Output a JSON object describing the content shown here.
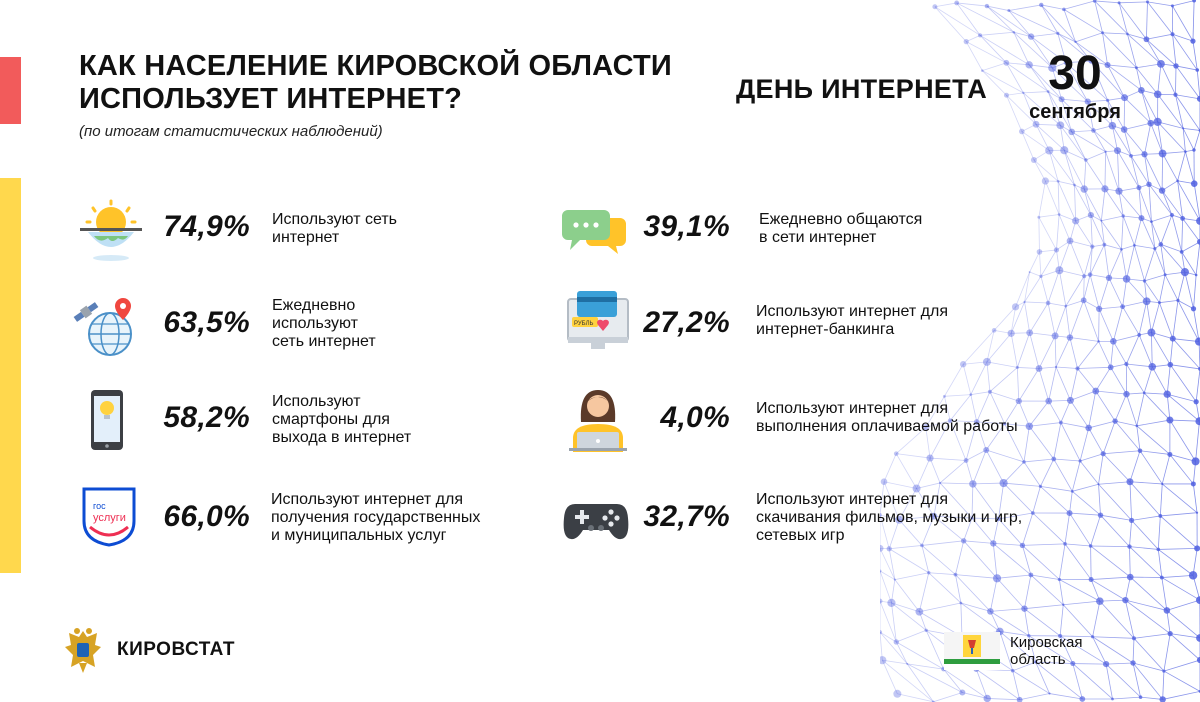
{
  "header": {
    "title_lines": [
      "КАК НАСЕЛЕНИЕ КИРОВСКОЙ ОБЛАСТИ",
      "ИСПОЛЬЗУЕТ ИНТЕРНЕТ?"
    ],
    "subtitle": "(по итогам статистических наблюдений)",
    "event": "ДЕНЬ ИНТЕРНЕТА",
    "date_number": "30",
    "date_month": "сентября"
  },
  "stats_left": [
    {
      "icon": "sun-globe-icon",
      "value": "74,9%",
      "lines": [
        "Используют сеть",
        "интернет"
      ]
    },
    {
      "icon": "globe-satellite-icon",
      "value": "63,5%",
      "lines": [
        "Ежедневно",
        "используют",
        "сеть интернет"
      ]
    },
    {
      "icon": "smartphone-icon",
      "value": "58,2%",
      "lines": [
        "Используют",
        "смартфоны для",
        "выхода в интернет"
      ]
    },
    {
      "icon": "gosuslugi-icon",
      "value": "66,0%",
      "lines": [
        "Используют интернет для",
        "получения государственных",
        "и муниципальных услуг"
      ]
    }
  ],
  "stats_right": [
    {
      "icon": "chat-bubbles-icon",
      "value": "39,1%",
      "lines": [
        "Ежедневно общаются",
        "в сети интернет"
      ]
    },
    {
      "icon": "online-banking-icon",
      "value": "27,2%",
      "lines": [
        "Используют интернет для",
        "интернет-банкинга"
      ]
    },
    {
      "icon": "remote-worker-icon",
      "value": "4,0%",
      "lines": [
        "Используют интернет для",
        "выполнения оплачиваемой работы"
      ]
    },
    {
      "icon": "gamepad-icon",
      "value": "32,7%",
      "lines": [
        "Используют интернет для",
        "скачивания фильмов, музыки и игр,",
        "сетевых игр"
      ]
    }
  ],
  "icon_labels": {
    "gosuslugi_top": "гос",
    "gosuslugi_bottom": "услуги",
    "banking_card": "РУБЛЬ"
  },
  "footer": {
    "org": "КИРОВСТАТ",
    "region_lines": [
      "Кировская",
      "область"
    ]
  },
  "colors": {
    "accent_red": "#f25b5b",
    "accent_yellow": "#ffd84d",
    "mesh_blue": "#4f5fe0",
    "gosuslugi_blue": "#0d4cd3",
    "gosuslugi_red": "#ee2f53"
  }
}
